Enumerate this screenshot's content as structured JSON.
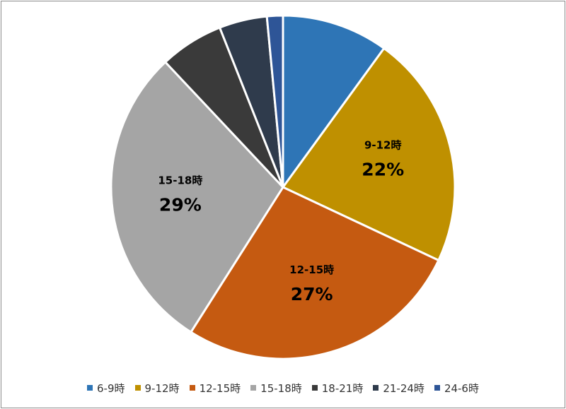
{
  "chart_data": {
    "type": "pie",
    "title": "",
    "slices": [
      {
        "label": "6-9時",
        "value": 10,
        "color": "#2e75b6",
        "data_label": ""
      },
      {
        "label": "9-12時",
        "value": 22,
        "color": "#bf9000",
        "data_label": "22%"
      },
      {
        "label": "12-15時",
        "value": 27,
        "color": "#c55a11",
        "data_label": "27%"
      },
      {
        "label": "15-18時",
        "value": 29,
        "color": "#a5a5a5",
        "data_label": "29%"
      },
      {
        "label": "18-21時",
        "value": 6,
        "color": "#3a3a3a",
        "data_label": ""
      },
      {
        "label": "21-24時",
        "value": 4.5,
        "color": "#2f3b4c",
        "data_label": ""
      },
      {
        "label": "24-6時",
        "value": 1.5,
        "color": "#2e5597",
        "data_label": ""
      }
    ],
    "legend": {
      "position": "bottom"
    }
  }
}
